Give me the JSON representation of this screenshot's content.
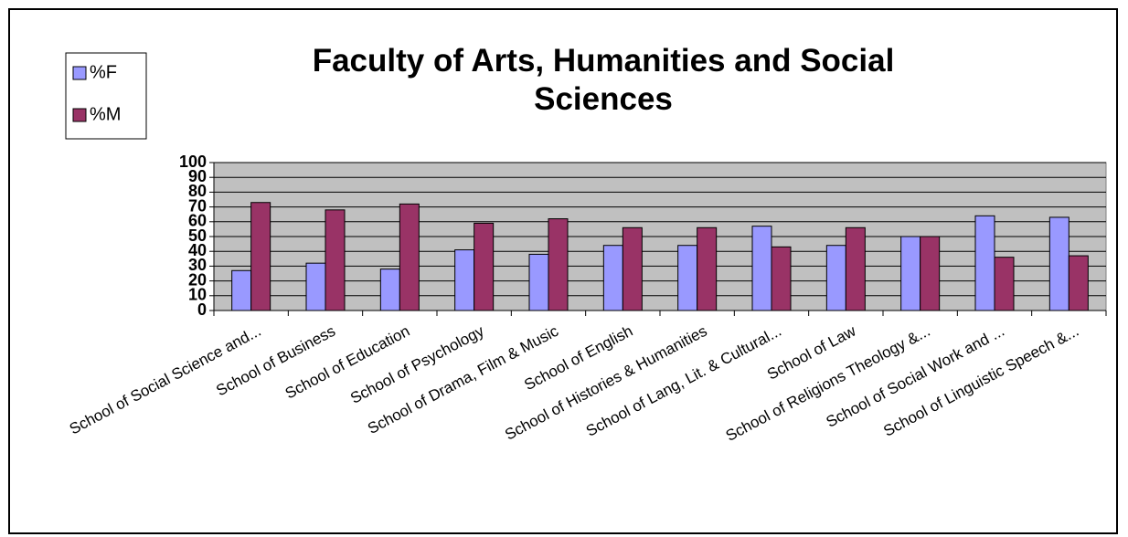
{
  "chart_data": {
    "type": "bar",
    "title": "Faculty of Arts, Humanities and Social Sciences",
    "categories": [
      "School of Social Science and...",
      "School of Business",
      "School of Education",
      "School of Psychology",
      "School of Drama, Film & Music",
      "School of English",
      "School of Histories &  Humanities",
      "School of Lang, Lit. & Cultural...",
      "School of Law",
      "School of Religions Theology &...",
      "School of Social Work and ...",
      "School of Linguistic Speech &..."
    ],
    "series": [
      {
        "name": "%F",
        "color": "#9999ff",
        "values": [
          27,
          32,
          28,
          41,
          38,
          44,
          44,
          57,
          44,
          50,
          64,
          63
        ]
      },
      {
        "name": "%M",
        "color": "#993366",
        "values": [
          73,
          68,
          72,
          59,
          62,
          56,
          56,
          43,
          56,
          50,
          36,
          37
        ]
      }
    ],
    "ylim": [
      0,
      100
    ],
    "yticks": [
      0,
      10,
      20,
      30,
      40,
      50,
      60,
      70,
      80,
      90,
      100
    ],
    "grid": true,
    "legend": "top-left"
  }
}
